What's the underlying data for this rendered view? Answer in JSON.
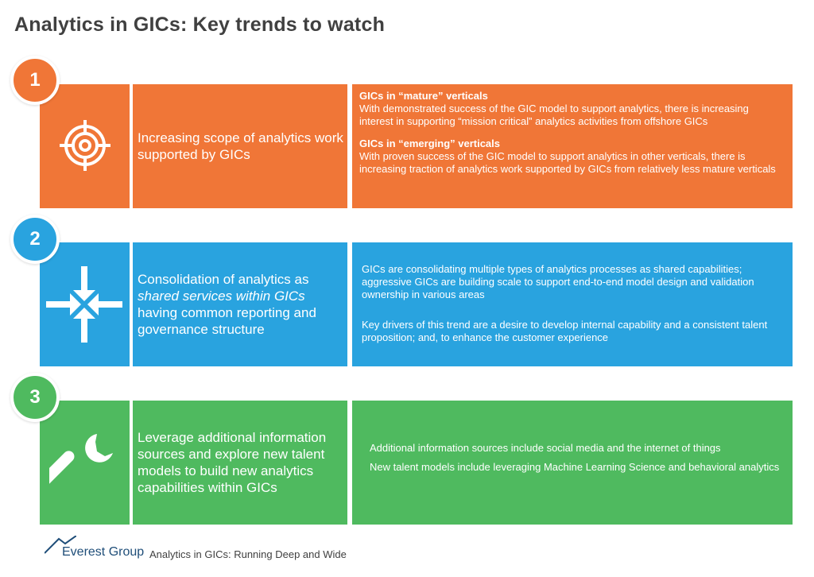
{
  "title": "Analytics in GICs: Key trends to watch",
  "colors": {
    "orange": "#f07637",
    "blue": "#29a3df",
    "green": "#4fba5f"
  },
  "trends": [
    {
      "number": "1",
      "icon": "target-icon",
      "label": "Increasing scope of analytics work supported by GICs",
      "items": [
        {
          "heading": "GICs in “mature” verticals",
          "text": "With demonstrated success of the GIC model to support analytics, there is increasing interest in supporting “mission critical” analytics activities from offshore GICs"
        },
        {
          "heading": "GICs in “emerging” verticals",
          "text": "With proven success of the GIC model to support analytics in other verticals, there is increasing traction of analytics work supported by GICs from relatively less mature verticals"
        }
      ]
    },
    {
      "number": "2",
      "icon": "converging-arrows-icon",
      "label_pre": "Consolidation of analytics as",
      "label_italic": "shared services within GICs",
      "label_post": "having common reporting and governance structure",
      "paragraphs": [
        "GICs are consolidating multiple types of analytics processes as shared capabilities; aggressive GICs are building scale to support end-to-end model design and validation ownership in various areas",
        "Key drivers of this trend are a desire to develop internal capability and a consistent talent proposition; and, to enhance the customer experience"
      ]
    },
    {
      "number": "3",
      "icon": "wrench-icon",
      "label": "Leverage additional information sources and explore new talent models to build new analytics capabilities within GICs",
      "paragraphs": [
        "Additional information sources include social media and the internet of things",
        "New talent models include leveraging Machine Learning Science and behavioral analytics"
      ]
    }
  ],
  "footer": {
    "brand": "Everest Group",
    "text": "Analytics in GICs: Running Deep and Wide"
  }
}
